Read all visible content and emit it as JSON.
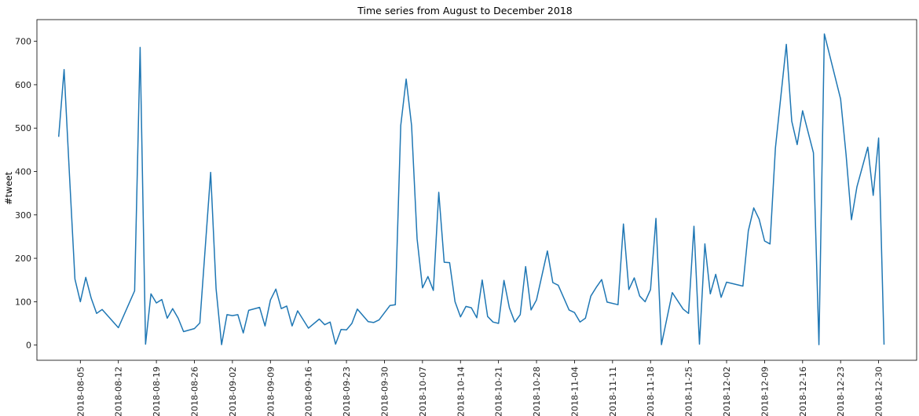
{
  "chart_data": {
    "type": "line",
    "title": "Time series from August to December 2018",
    "xlabel": "",
    "ylabel": "#tweet",
    "x_range": [
      "2018-07-28",
      "2019-01-06"
    ],
    "ylim": [
      -35,
      750
    ],
    "yticks": [
      0,
      100,
      200,
      300,
      400,
      500,
      600,
      700
    ],
    "xticks": [
      "2018-08-05",
      "2018-08-12",
      "2018-08-19",
      "2018-08-26",
      "2018-09-02",
      "2018-09-09",
      "2018-09-16",
      "2018-09-23",
      "2018-09-30",
      "2018-10-07",
      "2018-10-14",
      "2018-10-21",
      "2018-10-28",
      "2018-11-04",
      "2018-11-11",
      "2018-11-18",
      "2018-11-25",
      "2018-12-02",
      "2018-12-09",
      "2018-12-16",
      "2018-12-23",
      "2018-12-30"
    ],
    "grid": false,
    "line_color": "#1f77b4",
    "series": [
      {
        "x": [
          "2018-08-01",
          "2018-08-02",
          "2018-08-03",
          "2018-08-04",
          "2018-08-05",
          "2018-08-06",
          "2018-08-07",
          "2018-08-08",
          "2018-08-09",
          "2018-08-12",
          "2018-08-15",
          "2018-08-16",
          "2018-08-17",
          "2018-08-18",
          "2018-08-19",
          "2018-08-20",
          "2018-08-21",
          "2018-08-22",
          "2018-08-23",
          "2018-08-24",
          "2018-08-26",
          "2018-08-27",
          "2018-08-29",
          "2018-08-30",
          "2018-08-31",
          "2018-09-01",
          "2018-09-02",
          "2018-09-03",
          "2018-09-04",
          "2018-09-05",
          "2018-09-07",
          "2018-09-08",
          "2018-09-09",
          "2018-09-10",
          "2018-09-11",
          "2018-09-12",
          "2018-09-13",
          "2018-09-14",
          "2018-09-16",
          "2018-09-18",
          "2018-09-19",
          "2018-09-20",
          "2018-09-21",
          "2018-09-22",
          "2018-09-23",
          "2018-09-24",
          "2018-09-25",
          "2018-09-27",
          "2018-09-28",
          "2018-09-29",
          "2018-10-01",
          "2018-10-02",
          "2018-10-03",
          "2018-10-04",
          "2018-10-05",
          "2018-10-06",
          "2018-10-07",
          "2018-10-08",
          "2018-10-09",
          "2018-10-10",
          "2018-10-11",
          "2018-10-12",
          "2018-10-13",
          "2018-10-14",
          "2018-10-15",
          "2018-10-16",
          "2018-10-17",
          "2018-10-18",
          "2018-10-19",
          "2018-10-20",
          "2018-10-21",
          "2018-10-22",
          "2018-10-23",
          "2018-10-24",
          "2018-10-25",
          "2018-10-26",
          "2018-10-27",
          "2018-10-28",
          "2018-10-30",
          "2018-10-31",
          "2018-11-01",
          "2018-11-03",
          "2018-11-04",
          "2018-11-05",
          "2018-11-06",
          "2018-11-07",
          "2018-11-08",
          "2018-11-09",
          "2018-11-10",
          "2018-11-12",
          "2018-11-13",
          "2018-11-14",
          "2018-11-15",
          "2018-11-16",
          "2018-11-17",
          "2018-11-18",
          "2018-11-19",
          "2018-11-20",
          "2018-11-22",
          "2018-11-24",
          "2018-11-25",
          "2018-11-26",
          "2018-11-27",
          "2018-11-28",
          "2018-11-29",
          "2018-11-30",
          "2018-12-01",
          "2018-12-02",
          "2018-12-05",
          "2018-12-06",
          "2018-12-07",
          "2018-12-08",
          "2018-12-09",
          "2018-12-10",
          "2018-12-11",
          "2018-12-13",
          "2018-12-14",
          "2018-12-15",
          "2018-12-16",
          "2018-12-18",
          "2018-12-19",
          "2018-12-20",
          "2018-12-23",
          "2018-12-24",
          "2018-12-25",
          "2018-12-26",
          "2018-12-28",
          "2018-12-29",
          "2018-12-30",
          "2018-12-31"
        ],
        "y": [
          480,
          635,
          390,
          152,
          100,
          156,
          108,
          73,
          82,
          40,
          125,
          686,
          2,
          118,
          97,
          105,
          62,
          84,
          62,
          31,
          38,
          51,
          398,
          130,
          1,
          70,
          68,
          70,
          28,
          80,
          87,
          44,
          104,
          129,
          84,
          90,
          44,
          79,
          39,
          60,
          47,
          53,
          2,
          36,
          35,
          50,
          83,
          54,
          52,
          58,
          91,
          93,
          506,
          613,
          506,
          245,
          132,
          158,
          126,
          352,
          191,
          190,
          100,
          65,
          89,
          86,
          63,
          150,
          66,
          53,
          50,
          149,
          86,
          53,
          70,
          181,
          81,
          104,
          217,
          144,
          138,
          81,
          75,
          53,
          62,
          113,
          133,
          151,
          99,
          93,
          279,
          128,
          155,
          113,
          100,
          128,
          292,
          1,
          121,
          83,
          73,
          274,
          2,
          233,
          118,
          163,
          110,
          145,
          136,
          263,
          316,
          290,
          240,
          233,
          454,
          693,
          516,
          462,
          540,
          443,
          1,
          717,
          567,
          440,
          289,
          365,
          456,
          345,
          477,
          1
        ]
      }
    ]
  }
}
